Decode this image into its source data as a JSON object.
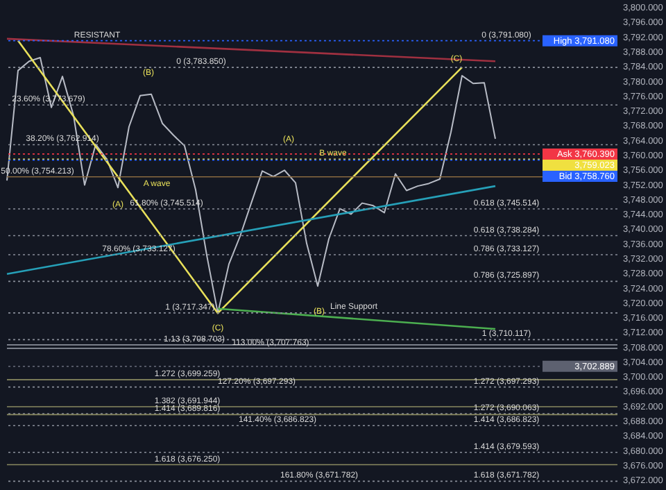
{
  "chart_data": {
    "type": "line",
    "ylim": [
      3669.4,
      3802.1
    ],
    "tick_labels": "y",
    "grid": false,
    "line_style": "solid",
    "marker": "none",
    "categories": [
      null,
      null,
      null,
      null,
      null,
      null,
      null,
      null,
      null,
      null,
      null,
      null,
      null,
      null,
      null,
      null,
      null,
      null,
      null,
      null,
      null,
      null,
      null,
      null,
      null,
      null,
      null,
      null,
      null,
      null,
      null,
      null,
      null,
      null,
      null,
      null,
      null,
      null,
      null,
      null,
      null,
      null,
      null,
      null,
      null
    ],
    "yticks": [
      {
        "value": 3672,
        "label": "3,672.000"
      },
      {
        "value": 3676,
        "label": "3,676.000"
      },
      {
        "value": 3680,
        "label": "3,680.000"
      },
      {
        "value": 3684,
        "label": "3,684.000"
      },
      {
        "value": 3688,
        "label": "3,688.000"
      },
      {
        "value": 3692,
        "label": "3,692.000"
      },
      {
        "value": 3696,
        "label": "3,696.000"
      },
      {
        "value": 3700,
        "label": "3,700.000"
      },
      {
        "value": 3704,
        "label": "3,704.000"
      },
      {
        "value": 3708,
        "label": "3,708.000"
      },
      {
        "value": 3712,
        "label": "3,712.000"
      },
      {
        "value": 3716,
        "label": "3,716.000"
      },
      {
        "value": 3720,
        "label": "3,720.000"
      },
      {
        "value": 3724,
        "label": "3,724.000"
      },
      {
        "value": 3728,
        "label": "3,728.000"
      },
      {
        "value": 3732,
        "label": "3,732.000"
      },
      {
        "value": 3736,
        "label": "3,736.000"
      },
      {
        "value": 3740,
        "label": "3,740.000"
      },
      {
        "value": 3744,
        "label": "3,744.000"
      },
      {
        "value": 3748,
        "label": "3,748.000"
      },
      {
        "value": 3752,
        "label": "3,752.000"
      },
      {
        "value": 3756,
        "label": "3,756.000"
      },
      {
        "value": 3760,
        "label": "3,760.000"
      },
      {
        "value": 3764,
        "label": "3,764.000"
      },
      {
        "value": 3768,
        "label": "3,768.000"
      },
      {
        "value": 3772,
        "label": "3,772.000"
      },
      {
        "value": 3776,
        "label": "3,776.000"
      },
      {
        "value": 3780,
        "label": "3,780.000"
      },
      {
        "value": 3784,
        "label": "3,784.000"
      },
      {
        "value": 3788,
        "label": "3,788.000"
      },
      {
        "value": 3792,
        "label": "3,792.000"
      },
      {
        "value": 3796,
        "label": "3,796.000"
      },
      {
        "value": 3800,
        "label": "3,800.000"
      }
    ],
    "series": [
      {
        "color": "#b8bcc6",
        "values": [
          3753.2,
          3783.0,
          3785.5,
          3786.5,
          3773.0,
          3781.4,
          3770.8,
          3752.0,
          3763.0,
          3759.0,
          3751.3,
          3767.8,
          3776.2,
          3776.6,
          3768.7,
          3765.5,
          3762.6,
          3750.7,
          3733.0,
          3717.3,
          3730.6,
          3738.1,
          3747.0,
          3755.8,
          3754.3,
          3756.0,
          3752.6,
          3736.2,
          3724.6,
          3737.4,
          3745.6,
          3744.1,
          3747.1,
          3746.4,
          3744.5,
          3755.0,
          3750.5,
          3751.7,
          3752.4,
          3753.6,
          3766.3,
          3781.6,
          3779.5,
          3779.7,
          3764.5
        ]
      },
      {
        "color": "#e8e05a",
        "values": [
          null,
          3791.1,
          null,
          null,
          null,
          null,
          null,
          null,
          null,
          null,
          null,
          null,
          null,
          null,
          null,
          null,
          null,
          null,
          null,
          3717.3,
          null,
          null,
          null,
          null,
          null,
          null,
          null,
          null,
          null,
          null,
          null,
          null,
          null,
          null,
          null,
          null,
          null,
          null,
          null,
          null,
          null,
          3783.9,
          null,
          null,
          null
        ]
      },
      {
        "color": "#26a0b8",
        "values": [
          3727.9,
          null,
          null,
          null,
          null,
          null,
          null,
          null,
          null,
          null,
          null,
          null,
          null,
          null,
          null,
          null,
          null,
          null,
          null,
          null,
          null,
          null,
          null,
          null,
          null,
          null,
          null,
          null,
          null,
          null,
          null,
          null,
          null,
          null,
          null,
          null,
          null,
          null,
          null,
          null,
          null,
          null,
          null,
          null,
          3751.7
        ]
      },
      {
        "color": "#4caf50",
        "values": [
          null,
          null,
          null,
          null,
          null,
          null,
          null,
          null,
          null,
          null,
          null,
          null,
          null,
          null,
          null,
          null,
          null,
          null,
          null,
          3718.5,
          null,
          null,
          null,
          null,
          null,
          null,
          null,
          null,
          null,
          null,
          null,
          null,
          null,
          null,
          null,
          null,
          null,
          null,
          null,
          null,
          null,
          null,
          null,
          null,
          3713.0
        ]
      },
      {
        "color": "#a03040",
        "values": [
          3791.6,
          null,
          null,
          null,
          null,
          null,
          null,
          null,
          null,
          null,
          null,
          null,
          null,
          null,
          null,
          null,
          null,
          null,
          null,
          null,
          null,
          null,
          null,
          null,
          null,
          null,
          null,
          null,
          null,
          null,
          null,
          null,
          null,
          null,
          null,
          null,
          null,
          null,
          null,
          null,
          null,
          null,
          null,
          null,
          3785.5
        ]
      }
    ],
    "ref_lines": [
      {
        "axis": "y",
        "value": 3791.08,
        "label": "High 3,791.080",
        "color": "#2962ff",
        "line_style": "dotted"
      },
      {
        "axis": "y",
        "value": 3760.39,
        "label": "Ask 3,760.390",
        "color": "#f23645",
        "line_style": "dotted"
      },
      {
        "axis": "y",
        "value": 3759.023,
        "label": "3,759.023",
        "color": "#f0e040",
        "line_style": "dotted"
      },
      {
        "axis": "y",
        "value": 3758.76,
        "label": "Bid 3,758.760",
        "color": "#2962ff",
        "line_style": "dotted"
      },
      {
        "axis": "y",
        "value": 3702.889,
        "label": "3,702.889",
        "color": "#5d6170",
        "line_style": "dotted"
      },
      {
        "axis": "y",
        "value": 3783.85,
        "color": "#8a8f9a",
        "line_style": "dotted"
      },
      {
        "axis": "y",
        "value": 3773.679,
        "color": "#8a8f9a",
        "line_style": "dotted"
      },
      {
        "axis": "y",
        "value": 3762.914,
        "color": "#8a8f9a",
        "line_style": "dotted"
      },
      {
        "axis": "y",
        "value": 3754.213,
        "color": "#8a6a40",
        "line_style": "solid"
      },
      {
        "axis": "y",
        "value": 3745.514,
        "color": "#8a8f9a",
        "line_style": "dotted"
      },
      {
        "axis": "y",
        "value": 3738.284,
        "color": "#8a8f9a",
        "line_style": "dotted"
      },
      {
        "axis": "y",
        "value": 3733.127,
        "color": "#8a8f9a",
        "line_style": "dotted"
      },
      {
        "axis": "y",
        "value": 3725.897,
        "color": "#8a8f9a",
        "line_style": "dotted"
      },
      {
        "axis": "y",
        "value": 3717.347,
        "color": "#8a8f9a",
        "line_style": "dotted"
      },
      {
        "axis": "y",
        "value": 3710.117,
        "color": "#8a8f9a",
        "line_style": "dotted"
      },
      {
        "axis": "y",
        "value": 3708.703,
        "color": "#8a8f9a",
        "line_style": "solid"
      },
      {
        "axis": "y",
        "value": 3707.763,
        "color": "#8a8f9a",
        "line_style": "solid"
      },
      {
        "axis": "y",
        "value": 3699.259,
        "color": "#8a8a60",
        "line_style": "solid"
      },
      {
        "axis": "y",
        "value": 3697.293,
        "color": "#8a8f9a",
        "line_style": "dotted"
      },
      {
        "axis": "y",
        "value": 3691.944,
        "color": "#8a8a60",
        "line_style": "solid"
      },
      {
        "axis": "y",
        "value": 3690.063,
        "color": "#8a8f9a",
        "line_style": "dotted"
      },
      {
        "axis": "y",
        "value": 3689.816,
        "color": "#8a8a60",
        "line_style": "solid"
      },
      {
        "axis": "y",
        "value": 3686.823,
        "color": "#8a8f9a",
        "line_style": "dotted"
      },
      {
        "axis": "y",
        "value": 3679.593,
        "color": "#8a8f9a",
        "line_style": "dotted"
      },
      {
        "axis": "y",
        "value": 3676.25,
        "color": "#8a8a60",
        "line_style": "solid"
      },
      {
        "axis": "y",
        "value": 3671.782,
        "color": "#8a8f9a",
        "line_style": "dotted"
      }
    ],
    "annotations": [
      {
        "text": "RESISTANT",
        "y": 3791.08
      },
      {
        "text": "0 (3,783.850)",
        "y": 3783.85
      },
      {
        "text": "0 (3,791.080)",
        "y": 3791.08
      },
      {
        "text": "23.60% (3,773.679)",
        "y": 3773.679
      },
      {
        "text": "38.20% (3,762.914)",
        "y": 3762.914
      },
      {
        "text": "50.00% (3,754.213)",
        "y": 3754.213
      },
      {
        "text": "61.80% (3,745.514)",
        "y": 3745.514
      },
      {
        "text": "78.60% (3,733.127)",
        "y": 3733.127
      },
      {
        "text": "1 (3,717.347)",
        "y": 3717.347
      },
      {
        "text": "1.13 (3,708.703)",
        "y": 3708.703
      },
      {
        "text": "113.00% (3,707.763)",
        "y": 3707.763
      },
      {
        "text": "1.272 (3,699.259)",
        "y": 3699.259
      },
      {
        "text": "127.20% (3,697.293)",
        "y": 3697.293
      },
      {
        "text": "1.382 (3,691.944)",
        "y": 3691.944
      },
      {
        "text": "1.414 (3,689.816)",
        "y": 3689.816
      },
      {
        "text": "141.40% (3,686.823)",
        "y": 3686.823
      },
      {
        "text": "1.618 (3,676.250)",
        "y": 3676.25
      },
      {
        "text": "161.80% (3,671.782)",
        "y": 3671.782
      },
      {
        "text": "0.618 (3,745.514)",
        "y": 3745.514
      },
      {
        "text": "0.618 (3,738.284)",
        "y": 3738.284
      },
      {
        "text": "0.786 (3,733.127)",
        "y": 3733.127
      },
      {
        "text": "0.786 (3,725.897)",
        "y": 3725.897
      },
      {
        "text": "1 (3,710.117)",
        "y": 3710.117
      },
      {
        "text": "1.272 (3,697.293)",
        "y": 3697.293
      },
      {
        "text": "1.272 (3,690.063)",
        "y": 3690.063
      },
      {
        "text": "1.414 (3,686.823)",
        "y": 3686.823
      },
      {
        "text": "1.414 (3,679.593)",
        "y": 3679.593
      },
      {
        "text": "1.618 (3,671.782)",
        "y": 3671.782
      },
      "(A)",
      "(B)",
      "(C)",
      "(A)",
      "(B)",
      "(C)",
      "A wave",
      "B wave",
      {
        "text": "Line Support",
        "y": 3717.5
      }
    ]
  }
}
